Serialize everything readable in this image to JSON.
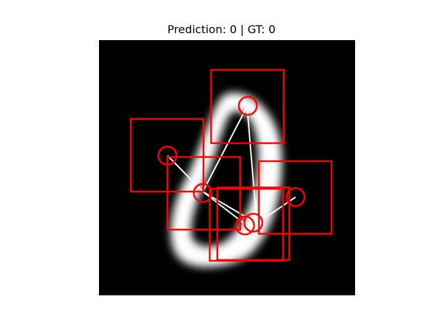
{
  "figure": {
    "title": "Prediction: 0 | GT: 0"
  },
  "image": {
    "background_color": "#000000",
    "digit_color": "#ffffff",
    "depicted_digit": "0"
  },
  "overlay": {
    "box_color": "#ff0000",
    "glimpse_marker_color": "#ff0000",
    "path_color": "#ffffff",
    "glimpse_count": 6
  }
}
